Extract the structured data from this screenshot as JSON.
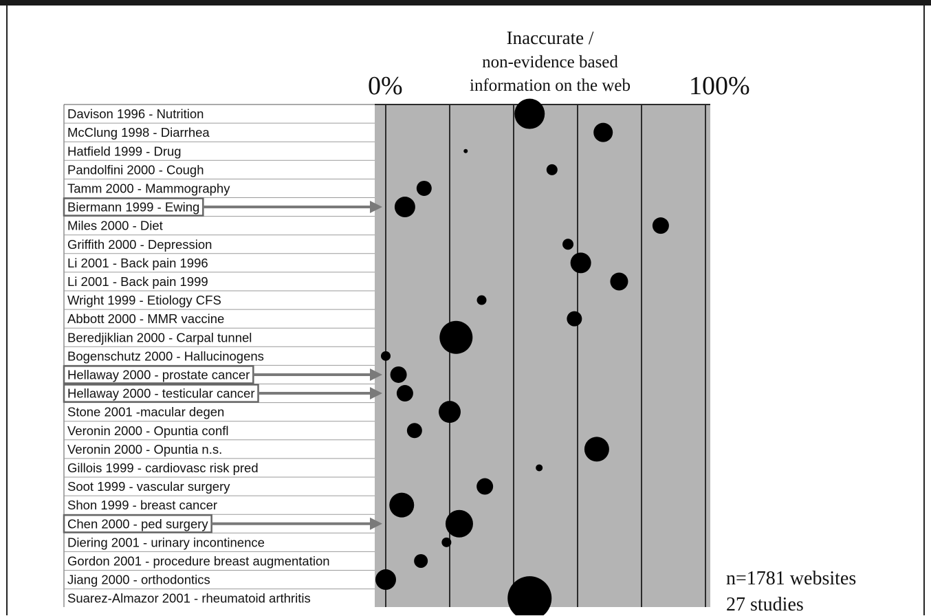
{
  "chart_data": {
    "type": "scatter",
    "title": [
      "Inaccurate /",
      "non-evidence based",
      "information on the web"
    ],
    "xlim": [
      0,
      100
    ],
    "x_min_label": "0%",
    "x_max_label": "100%",
    "grid": true,
    "highlighted_rows": [
      5,
      14,
      15,
      22
    ],
    "rows": [
      {
        "label": "Davison 1996 - Nutrition",
        "value": 45,
        "size": 22
      },
      {
        "label": "McClung 1998 - Diarrhea",
        "value": 68,
        "size": 14
      },
      {
        "label": "Hatfield 1999 - Drug",
        "value": 25,
        "size": 3
      },
      {
        "label": "Pandolfini 2000 - Cough",
        "value": 52,
        "size": 8
      },
      {
        "label": "Tamm 2000 - Mammography",
        "value": 12,
        "size": 11
      },
      {
        "label": "Biermann 1999 - Ewing",
        "value": 6,
        "size": 15
      },
      {
        "label": "Miles 2000 - Diet",
        "value": 86,
        "size": 12
      },
      {
        "label": "Griffith 2000 - Depression",
        "value": 57,
        "size": 8
      },
      {
        "label": "Li 2001 - Back pain 1996",
        "value": 61,
        "size": 15
      },
      {
        "label": "Li 2001 - Back pain 1999",
        "value": 73,
        "size": 13
      },
      {
        "label": "Wright 1999 - Etiology CFS",
        "value": 30,
        "size": 7
      },
      {
        "label": "Abbott 2000 - MMR vaccine",
        "value": 59,
        "size": 11
      },
      {
        "label": "Beredjiklian 2000 - Carpal tunnel",
        "value": 22,
        "size": 24
      },
      {
        "label": "Bogenschutz 2000 - Hallucinogens",
        "value": 0,
        "size": 7
      },
      {
        "label": "Hellaway 2000 - prostate cancer",
        "value": 4,
        "size": 12
      },
      {
        "label": "Hellaway 2000 - testicular cancer",
        "value": 6,
        "size": 12
      },
      {
        "label": "Stone 2001 -macular degen",
        "value": 20,
        "size": 16
      },
      {
        "label": "Veronin 2000 - Opuntia confl",
        "value": 9,
        "size": 11
      },
      {
        "label": "Veronin 2000 - Opuntia n.s.",
        "value": 66,
        "size": 18
      },
      {
        "label": "Gillois 1999 - cardiovasc risk pred",
        "value": 48,
        "size": 5
      },
      {
        "label": "Soot 1999 - vascular surgery",
        "value": 31,
        "size": 12
      },
      {
        "label": "Shon 1999 - breast cancer",
        "value": 5,
        "size": 18
      },
      {
        "label": "Chen 2000 - ped surgery",
        "value": 23,
        "size": 20
      },
      {
        "label": "Diering 2001 - urinary incontinence",
        "value": 19,
        "size": 7
      },
      {
        "label": "Gordon 2001 - procedure breast augmentation",
        "value": 11,
        "size": 10
      },
      {
        "label": "Jiang 2000 - orthodontics",
        "value": 0,
        "size": 15
      },
      {
        "label": "Suarez-Almazor 2001 - rheumatoid arthritis",
        "value": 45,
        "size": 32
      }
    ],
    "annotations": [
      "n=1781 websites",
      "27 studies"
    ]
  },
  "colors": {
    "plot_background": "#b4b4b4",
    "gridline": "#2a2a2a",
    "marker": "#000000",
    "highlight_box": "#666666",
    "arrow": "#7a7a7a"
  }
}
